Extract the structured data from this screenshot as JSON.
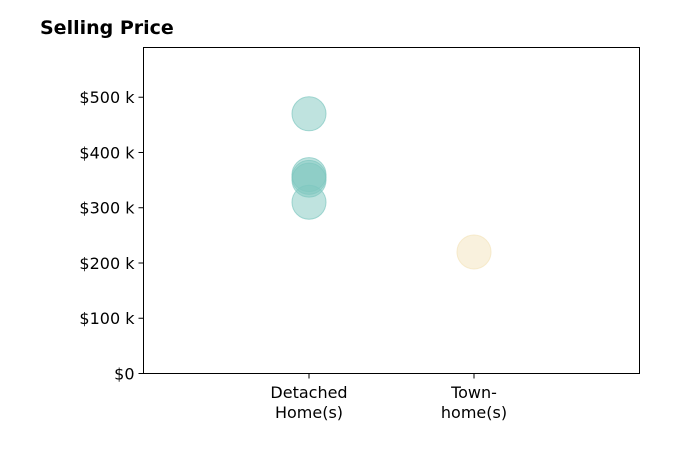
{
  "chart_data": {
    "type": "scatter",
    "title": "Selling Price",
    "xlabel": "",
    "ylabel": "",
    "categories": [
      [
        "Detached",
        "Home(s)"
      ],
      [
        "Town-",
        "home(s)"
      ]
    ],
    "y_ticks": [
      0,
      100000,
      200000,
      300000,
      400000,
      500000
    ],
    "y_tick_labels": [
      "$0",
      "$100 k",
      "$200 k",
      "$300 k",
      "$400 k",
      "$500 k"
    ],
    "ylim": [
      0,
      590000
    ],
    "grid": false,
    "legend": "none",
    "series": [
      {
        "category_index": 0,
        "color": "#7fc7c0",
        "values": [
          470000,
          360000,
          350000,
          355000,
          310000
        ]
      },
      {
        "category_index": 1,
        "color": "#f4e4bc",
        "values": [
          220000
        ]
      }
    ]
  }
}
